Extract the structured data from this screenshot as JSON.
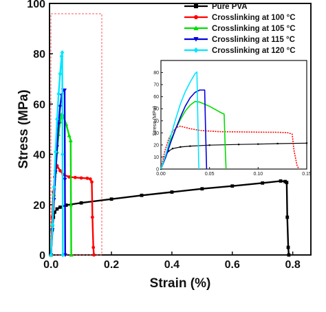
{
  "chart_data": {
    "type": "line",
    "title": "",
    "xlabel": "Strain (%)",
    "ylabel": "Stress (MPa)",
    "xlim": [
      -0.005,
      0.86
    ],
    "ylim": [
      0,
      100
    ],
    "x_ticks": [
      "0.0",
      "0.2",
      "0.4",
      "0.6",
      "0.8"
    ],
    "x_tick_values": [
      0,
      0.2,
      0.4,
      0.6,
      0.8
    ],
    "y_ticks": [
      "0",
      "20",
      "40",
      "60",
      "80",
      "100"
    ],
    "y_tick_values": [
      0,
      20,
      40,
      60,
      80,
      100
    ],
    "legend_position": "top-right",
    "series": [
      {
        "name": "Pure PVA",
        "color": "#000000",
        "marker": "square",
        "x": [
          0,
          0.004,
          0.008,
          0.012,
          0.02,
          0.03,
          0.05,
          0.1,
          0.2,
          0.3,
          0.4,
          0.5,
          0.6,
          0.7,
          0.76,
          0.775,
          0.78,
          0.782,
          0.785,
          0.787
        ],
        "y": [
          0,
          10,
          15,
          17,
          18.3,
          19,
          19.8,
          20.7,
          22.2,
          23.7,
          25,
          26.3,
          27.4,
          28.6,
          29.4,
          29.2,
          28.8,
          15,
          3,
          0
        ]
      },
      {
        "name": "Crosslinking at 100 °C",
        "color": "#ff0000",
        "marker": "circle",
        "x": [
          0,
          0.004,
          0.008,
          0.012,
          0.016,
          0.02,
          0.03,
          0.04,
          0.06,
          0.08,
          0.1,
          0.12,
          0.13,
          0.135,
          0.137,
          0.14,
          0.142
        ],
        "y": [
          0,
          15,
          25,
          31,
          34.5,
          35.5,
          33.5,
          32,
          31,
          30.8,
          30.6,
          30.5,
          30.2,
          29,
          15,
          3,
          0
        ]
      },
      {
        "name": "Crosslinking at 105 °C",
        "color": "#00dd00",
        "marker": "triangle-up",
        "x": [
          0,
          0.005,
          0.01,
          0.015,
          0.02,
          0.025,
          0.03,
          0.035,
          0.04,
          0.05,
          0.06,
          0.065,
          0.066,
          0.067
        ],
        "y": [
          0,
          12,
          24,
          33,
          41,
          48,
          53,
          56,
          55.5,
          52,
          47.5,
          45.5,
          20,
          0
        ]
      },
      {
        "name": "Crosslinking at 115 °C",
        "color": "#0000dd",
        "marker": "triangle-down",
        "x": [
          0,
          0.005,
          0.01,
          0.015,
          0.02,
          0.025,
          0.03,
          0.035,
          0.04,
          0.045,
          0.046,
          0.047
        ],
        "y": [
          0,
          10,
          22,
          33,
          43,
          52,
          59,
          63.5,
          65.5,
          65.5,
          30,
          0
        ]
      },
      {
        "name": "Crosslinking at 120 °C",
        "color": "#00e5ff",
        "marker": "diamond",
        "x": [
          0,
          0.005,
          0.01,
          0.015,
          0.02,
          0.025,
          0.03,
          0.035,
          0.037,
          0.038,
          0.039
        ],
        "y": [
          0,
          12,
          27,
          41,
          54,
          64,
          72,
          79,
          80.5,
          40,
          0
        ]
      }
    ],
    "inset": {
      "xlabel": "",
      "ylabel": "Stress (MPa)",
      "xlim": [
        0,
        0.15
      ],
      "ylim": [
        0,
        90
      ],
      "x_ticks": [
        "0.00",
        "0.05",
        "0.10",
        "0.15"
      ],
      "x_tick_values": [
        0,
        0.05,
        0.1,
        0.15
      ],
      "y_ticks": [
        "0",
        "10",
        "20",
        "30",
        "40",
        "50",
        "60",
        "70",
        "80"
      ],
      "y_tick_values": [
        0,
        10,
        20,
        30,
        40,
        50,
        60,
        70,
        80
      ],
      "pva_x": [
        0,
        0.004,
        0.008,
        0.012,
        0.02,
        0.03,
        0.05,
        0.08,
        0.1,
        0.12,
        0.15
      ],
      "pva_y": [
        0,
        10,
        15,
        17,
        18.3,
        19,
        19.8,
        20.4,
        20.7,
        21.1,
        21.5
      ]
    }
  }
}
